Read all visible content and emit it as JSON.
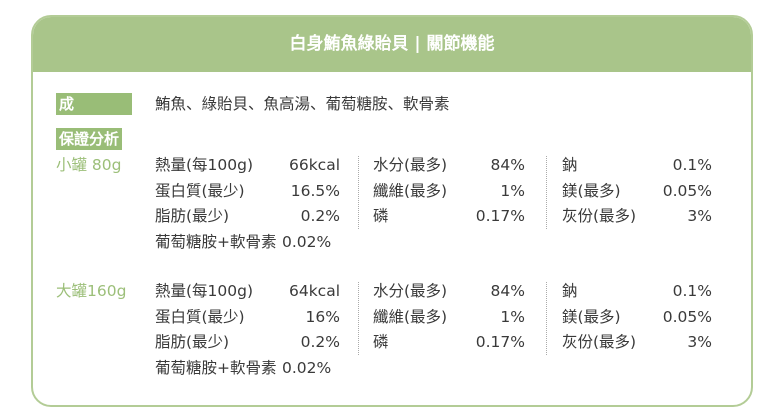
{
  "header": {
    "title": "白身鮪魚綠貽貝 | 關節機能"
  },
  "ingredients": {
    "label": "成分",
    "text": "鮪魚、綠貽貝、魚高湯、葡萄糖胺、軟骨素"
  },
  "analysis": {
    "label": "保證分析",
    "groups": [
      {
        "name": "小罐 80g",
        "columns": [
          [
            {
              "label": "熱量(每100g)",
              "value": "66kcal"
            },
            {
              "label": "蛋白質(最少)",
              "value": "16.5%"
            },
            {
              "label": "脂肪(最少)",
              "value": "0.2%"
            },
            {
              "label": "葡萄糖胺+軟骨素",
              "value": "0.02%"
            }
          ],
          [
            {
              "label": "水分(最多)",
              "value": "84%"
            },
            {
              "label": "纖維(最多)",
              "value": "1%"
            },
            {
              "label": "磷",
              "value": "0.17%"
            }
          ],
          [
            {
              "label": "鈉",
              "value": "0.1%"
            },
            {
              "label": "鎂(最多)",
              "value": "0.05%"
            },
            {
              "label": "灰份(最多)",
              "value": "3%"
            }
          ]
        ]
      },
      {
        "name": "大罐160g",
        "columns": [
          [
            {
              "label": "熱量(每100g)",
              "value": "64kcal"
            },
            {
              "label": "蛋白質(最少)",
              "value": "16%"
            },
            {
              "label": "脂肪(最少)",
              "value": "0.2%"
            },
            {
              "label": "葡萄糖胺+軟骨素",
              "value": "0.02%"
            }
          ],
          [
            {
              "label": "水分(最多)",
              "value": "84%"
            },
            {
              "label": "纖維(最多)",
              "value": "1%"
            },
            {
              "label": "磷",
              "value": "0.17%"
            }
          ],
          [
            {
              "label": "鈉",
              "value": "0.1%"
            },
            {
              "label": "鎂(最多)",
              "value": "0.05%"
            },
            {
              "label": "灰份(最多)",
              "value": "3%"
            }
          ]
        ]
      }
    ]
  }
}
